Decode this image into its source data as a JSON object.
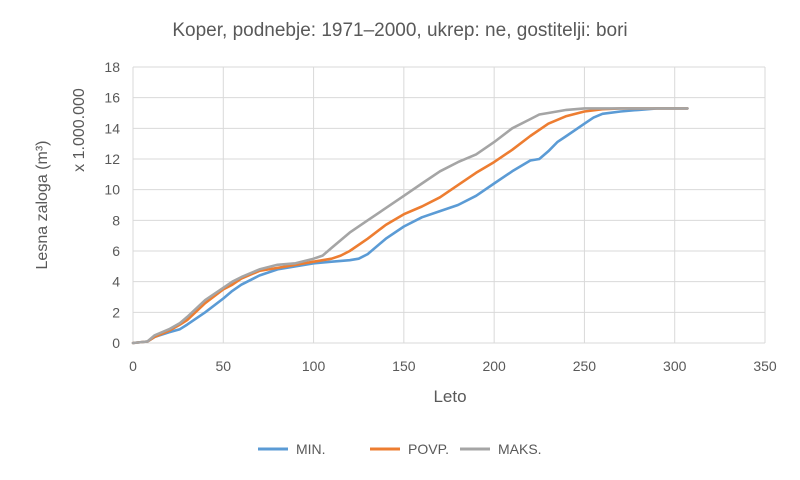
{
  "chart_data": {
    "type": "line",
    "title": "Koper, podnebje: 1971–2000, ukrep: ne, gostitelji: bori",
    "xlabel": "Leto",
    "ylabel": "Lesna zaloga (m³)",
    "y_multiplier_label": "x 1.000.000",
    "xlim": [
      0,
      350
    ],
    "ylim": [
      0,
      18
    ],
    "x_ticks": [
      0,
      50,
      100,
      150,
      200,
      250,
      300,
      350
    ],
    "y_ticks": [
      0,
      2,
      4,
      6,
      8,
      10,
      12,
      14,
      16,
      18
    ],
    "grid": true,
    "legend_position": "bottom",
    "series": [
      {
        "name": "MIN.",
        "color": "#5B9BD5",
        "points": [
          [
            0,
            0
          ],
          [
            8,
            0.1
          ],
          [
            12,
            0.4
          ],
          [
            20,
            0.7
          ],
          [
            26,
            0.9
          ],
          [
            30,
            1.2
          ],
          [
            40,
            2.0
          ],
          [
            50,
            2.9
          ],
          [
            55,
            3.4
          ],
          [
            60,
            3.8
          ],
          [
            70,
            4.4
          ],
          [
            80,
            4.8
          ],
          [
            90,
            5.0
          ],
          [
            100,
            5.2
          ],
          [
            110,
            5.3
          ],
          [
            120,
            5.4
          ],
          [
            125,
            5.5
          ],
          [
            130,
            5.8
          ],
          [
            140,
            6.8
          ],
          [
            150,
            7.6
          ],
          [
            160,
            8.2
          ],
          [
            170,
            8.6
          ],
          [
            180,
            9.0
          ],
          [
            190,
            9.6
          ],
          [
            200,
            10.4
          ],
          [
            210,
            11.2
          ],
          [
            220,
            11.9
          ],
          [
            225,
            12.0
          ],
          [
            230,
            12.5
          ],
          [
            235,
            13.1
          ],
          [
            240,
            13.5
          ],
          [
            250,
            14.3
          ],
          [
            255,
            14.7
          ],
          [
            260,
            14.95
          ],
          [
            270,
            15.1
          ],
          [
            280,
            15.2
          ],
          [
            290,
            15.3
          ],
          [
            300,
            15.3
          ],
          [
            307,
            15.3
          ]
        ]
      },
      {
        "name": "POVP.",
        "color": "#ED7D31",
        "points": [
          [
            0,
            0
          ],
          [
            8,
            0.1
          ],
          [
            12,
            0.4
          ],
          [
            20,
            0.8
          ],
          [
            26,
            1.2
          ],
          [
            30,
            1.5
          ],
          [
            40,
            2.6
          ],
          [
            50,
            3.5
          ],
          [
            55,
            3.8
          ],
          [
            60,
            4.2
          ],
          [
            70,
            4.7
          ],
          [
            80,
            4.9
          ],
          [
            90,
            5.1
          ],
          [
            100,
            5.3
          ],
          [
            110,
            5.5
          ],
          [
            115,
            5.7
          ],
          [
            120,
            6.0
          ],
          [
            130,
            6.8
          ],
          [
            140,
            7.7
          ],
          [
            150,
            8.4
          ],
          [
            160,
            8.9
          ],
          [
            170,
            9.5
          ],
          [
            180,
            10.3
          ],
          [
            190,
            11.1
          ],
          [
            200,
            11.8
          ],
          [
            210,
            12.6
          ],
          [
            220,
            13.5
          ],
          [
            230,
            14.3
          ],
          [
            240,
            14.8
          ],
          [
            250,
            15.1
          ],
          [
            260,
            15.25
          ],
          [
            270,
            15.3
          ],
          [
            300,
            15.3
          ],
          [
            307,
            15.3
          ]
        ]
      },
      {
        "name": "MAKS.",
        "color": "#A5A5A5",
        "points": [
          [
            0,
            0
          ],
          [
            8,
            0.1
          ],
          [
            12,
            0.5
          ],
          [
            20,
            0.9
          ],
          [
            26,
            1.3
          ],
          [
            30,
            1.7
          ],
          [
            40,
            2.8
          ],
          [
            50,
            3.6
          ],
          [
            55,
            4.0
          ],
          [
            60,
            4.3
          ],
          [
            70,
            4.8
          ],
          [
            80,
            5.1
          ],
          [
            90,
            5.2
          ],
          [
            100,
            5.5
          ],
          [
            105,
            5.7
          ],
          [
            110,
            6.2
          ],
          [
            120,
            7.2
          ],
          [
            130,
            8.0
          ],
          [
            140,
            8.8
          ],
          [
            150,
            9.6
          ],
          [
            160,
            10.4
          ],
          [
            170,
            11.2
          ],
          [
            180,
            11.8
          ],
          [
            190,
            12.3
          ],
          [
            200,
            13.1
          ],
          [
            210,
            14.0
          ],
          [
            220,
            14.6
          ],
          [
            225,
            14.9
          ],
          [
            230,
            15.0
          ],
          [
            240,
            15.2
          ],
          [
            250,
            15.3
          ],
          [
            300,
            15.3
          ],
          [
            307,
            15.3
          ]
        ]
      }
    ]
  }
}
